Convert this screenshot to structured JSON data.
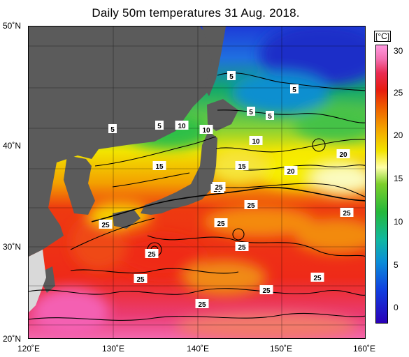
{
  "title": "Daily 50m temperatures 31 Aug. 2018.",
  "colorbar": {
    "unit": "[°C]",
    "ticks": [
      "30",
      "25",
      "20",
      "15",
      "10",
      "5",
      "0"
    ],
    "min": -2,
    "max": 31
  },
  "axes": {
    "lat": [
      "50˚N",
      "40˚N",
      "30˚N",
      "20˚N"
    ],
    "lon": [
      "120˚E",
      "130˚E",
      "140˚E",
      "150˚E",
      "160˚E"
    ]
  },
  "contour_labels": [
    "5",
    "5",
    "5",
    "5",
    "5",
    "5",
    "10",
    "10",
    "10",
    "15",
    "15",
    "20",
    "20",
    "20",
    "25",
    "25",
    "25",
    "25",
    "25",
    "25",
    "25",
    "25",
    "25",
    "25",
    "25"
  ],
  "colors": {
    "land": "#5b5b5b",
    "land_shadow": "#d9d9d9",
    "cold": "#1d3cd8",
    "cool": "#16b24a",
    "mild": "#f4e400",
    "warm": "#ef2d17",
    "hot": "#f26aa8"
  }
}
